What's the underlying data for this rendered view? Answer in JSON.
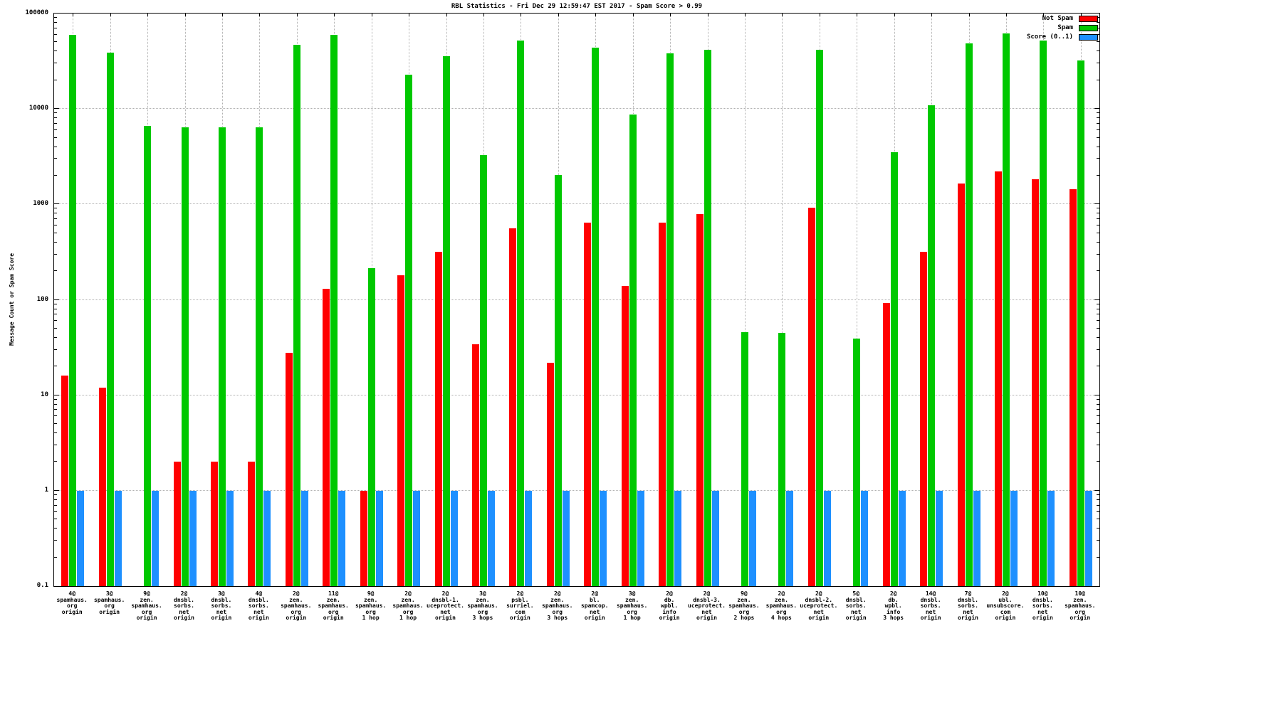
{
  "chart": {
    "title": "RBL Statistics - Fri Dec 29 12:59:47 EST 2017 - Spam Score > 0.99",
    "ylabel": "Message Count or Spam Score"
  },
  "legend": {
    "position": "top-right",
    "items": [
      {
        "label": "Not Spam",
        "color": "#ff0000"
      },
      {
        "label": "Spam",
        "color": "#00c800"
      },
      {
        "label": "Score (0..1)",
        "color": "#1e90ff"
      }
    ]
  },
  "chart_data": {
    "type": "bar",
    "y_scale": "log",
    "ylim": [
      0.1,
      100000
    ],
    "y_ticks": [
      100000,
      10000,
      1000,
      100,
      10,
      1,
      0.1
    ],
    "grid": true,
    "title": "RBL Statistics - Fri Dec 29 12:59:47 EST 2017 - Spam Score > 0.99",
    "xlabel": "",
    "ylabel": "Message Count or Spam Score",
    "categories": [
      [
        "4@",
        "spamhaus.",
        "org",
        "origin"
      ],
      [
        "3@",
        "spamhaus.",
        "org",
        "origin"
      ],
      [
        "9@",
        "zen.",
        "spamhaus.",
        "org",
        "origin"
      ],
      [
        "2@",
        "dnsbl.",
        "sorbs.",
        "net",
        "origin"
      ],
      [
        "3@",
        "dnsbl.",
        "sorbs.",
        "net",
        "origin"
      ],
      [
        "4@",
        "dnsbl.",
        "sorbs.",
        "net",
        "origin"
      ],
      [
        "2@",
        "zen.",
        "spamhaus.",
        "org",
        "origin"
      ],
      [
        "11@",
        "zen.",
        "spamhaus.",
        "org",
        "origin"
      ],
      [
        "9@",
        "zen.",
        "spamhaus.",
        "org",
        "1 hop"
      ],
      [
        "2@",
        "zen.",
        "spamhaus.",
        "org",
        "1 hop"
      ],
      [
        "2@",
        "dnsbl-1.",
        "uceprotect.",
        "net",
        "origin"
      ],
      [
        "3@",
        "zen.",
        "spamhaus.",
        "org",
        "3 hops"
      ],
      [
        "2@",
        "psbl.",
        "surriel.",
        "com",
        "origin"
      ],
      [
        "2@",
        "zen.",
        "spamhaus.",
        "org",
        "3 hops"
      ],
      [
        "2@",
        "bl.",
        "spamcop.",
        "net",
        "origin"
      ],
      [
        "3@",
        "zen.",
        "spamhaus.",
        "org",
        "1 hop"
      ],
      [
        "2@",
        "db.",
        "wpbl.",
        "info",
        "origin"
      ],
      [
        "2@",
        "dnsbl-3.",
        "uceprotect.",
        "net",
        "origin"
      ],
      [
        "9@",
        "zen.",
        "spamhaus.",
        "org",
        "2 hops"
      ],
      [
        "2@",
        "zen.",
        "spamhaus.",
        "org",
        "4 hops"
      ],
      [
        "2@",
        "dnsbl-2.",
        "uceprotect.",
        "net",
        "origin"
      ],
      [
        "5@",
        "dnsbl.",
        "sorbs.",
        "net",
        "origin"
      ],
      [
        "2@",
        "db.",
        "wpbl.",
        "info",
        "3 hops"
      ],
      [
        "14@",
        "dnsbl.",
        "sorbs.",
        "net",
        "origin"
      ],
      [
        "7@",
        "dnsbl.",
        "sorbs.",
        "net",
        "origin"
      ],
      [
        "2@",
        "ubl.",
        "unsubscore.",
        "com",
        "origin"
      ],
      [
        "10@",
        "dnsbl.",
        "sorbs.",
        "net",
        "origin"
      ],
      [
        "10@",
        "zen.",
        "spamhaus.",
        "org",
        "origin"
      ]
    ],
    "series": [
      {
        "name": "Not Spam",
        "color": "#ff0000",
        "values": [
          16,
          12,
          0,
          2,
          2,
          2,
          28,
          130,
          1,
          180,
          320,
          34,
          560,
          22,
          640,
          140,
          640,
          790,
          0,
          0,
          920,
          0,
          93,
          320,
          1650,
          2200,
          1850,
          1450
        ]
      },
      {
        "name": "Spam",
        "color": "#00c800",
        "values": [
          60000,
          39000,
          6600,
          6400,
          6400,
          6400,
          47000,
          60000,
          215,
          23000,
          36000,
          3300,
          52000,
          2050,
          44000,
          8800,
          38000,
          42000,
          46,
          45,
          42000,
          39,
          3500,
          11000,
          49000,
          62000,
          52000,
          32000
        ]
      },
      {
        "name": "Score (0..1)",
        "color": "#1e90ff",
        "values": [
          1,
          1,
          1,
          1,
          1,
          1,
          1,
          1,
          1,
          1,
          1,
          1,
          1,
          1,
          1,
          1,
          1,
          1,
          1,
          1,
          1,
          1,
          1,
          1,
          1,
          1,
          1,
          1
        ]
      }
    ]
  }
}
